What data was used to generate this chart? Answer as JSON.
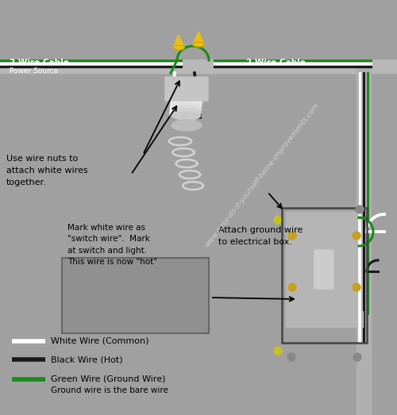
{
  "bg_color": "#a0a0a0",
  "watermark": "www.easy-do-it-yourself-home-improvements.com",
  "cable_label_left": "2 Wire Cable",
  "cable_label_left2": "Power Source",
  "cable_label_right": "2 Wire Cable",
  "annotation1": "Use wire nuts to\nattach white wires\ntogether.",
  "annotation2": "Attach ground wire\nto electrical box.",
  "annotation3": "Mark white wire as\n\"switch wire\".  Mark\nat switch and light.\nThis wire is now \"hot\"",
  "legend_white": "White Wire (Common)",
  "legend_black": "Black Wire (Hot)",
  "legend_green1": "Green Wire (Ground Wire)",
  "legend_green2": "Ground wire is the bare wire",
  "wire_white": "#ffffff",
  "wire_black": "#1a1a1a",
  "wire_green": "#1a8a1a",
  "cable_bar_color": "#b8b8b8",
  "right_bar_color": "#b0b0b0",
  "fig_width": 5.0,
  "fig_height": 5.23
}
